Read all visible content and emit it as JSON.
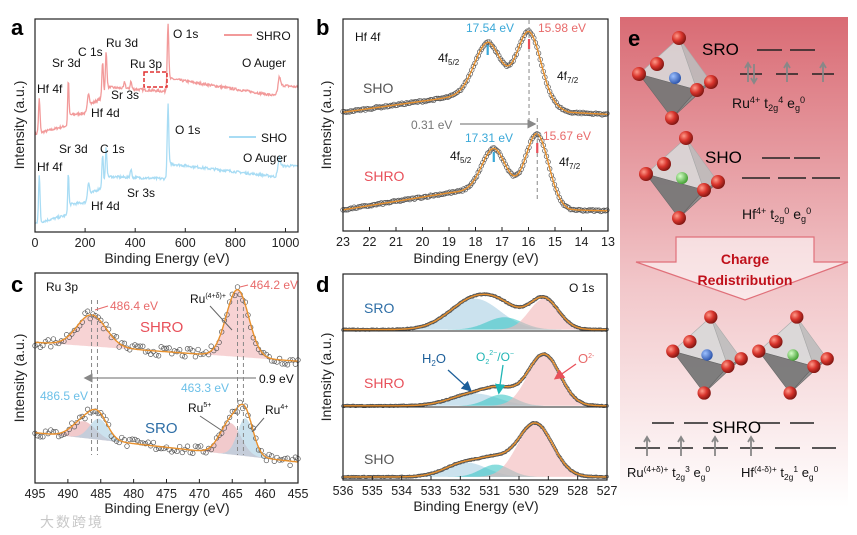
{
  "watermark": "大数跨境",
  "chart_data": [
    {
      "panel": "a",
      "type": "line",
      "xlabel": "Binding Energy (eV)",
      "ylabel": "Intensity (a.u.)",
      "xlim": [
        0,
        1050
      ],
      "ylim": [
        0,
        10
      ],
      "xticks": [
        0,
        200,
        400,
        600,
        800,
        1000
      ],
      "legend_position": "top-right",
      "series": [
        {
          "name": "SHRO",
          "color": "#f29a9a",
          "background": [
            [
              0,
              4.6
            ],
            [
              130,
              5.0
            ],
            [
              140,
              5.5
            ],
            [
              210,
              5.6
            ],
            [
              220,
              6.0
            ],
            [
              270,
              6.3
            ],
            [
              290,
              6.8
            ],
            [
              520,
              6.6
            ],
            [
              540,
              7.2
            ],
            [
              960,
              6.4
            ],
            [
              980,
              6.9
            ],
            [
              1050,
              6.8
            ]
          ],
          "peaks": [
            [
              17,
              1.6,
              3
            ],
            [
              133,
              2.0,
              2.5
            ],
            [
              213,
              0.8,
              4
            ],
            [
              270,
              1.7,
              3
            ],
            [
              284,
              1.8,
              3
            ],
            [
              358,
              0.3,
              3
            ],
            [
              383,
              0.35,
              3
            ],
            [
              531,
              2.9,
              3
            ],
            [
              975,
              0.5,
              4
            ]
          ]
        },
        {
          "name": "SHO",
          "color": "#a8dcf4",
          "background": [
            [
              0,
              0.4
            ],
            [
              130,
              0.8
            ],
            [
              140,
              1.3
            ],
            [
              210,
              1.4
            ],
            [
              220,
              1.8
            ],
            [
              270,
              2.1
            ],
            [
              290,
              2.6
            ],
            [
              520,
              2.5
            ],
            [
              540,
              3.2
            ],
            [
              960,
              2.6
            ],
            [
              980,
              3.1
            ],
            [
              1050,
              3.1
            ]
          ],
          "peaks": [
            [
              17,
              2.2,
              3
            ],
            [
              133,
              1.8,
              2.5
            ],
            [
              213,
              0.8,
              4
            ],
            [
              270,
              1.5,
              3
            ],
            [
              284,
              1.5,
              3
            ],
            [
              383,
              0.4,
              3
            ],
            [
              531,
              3.1,
              3
            ],
            [
              975,
              0.5,
              4
            ]
          ]
        }
      ],
      "annotations": {
        "shro": [
          "Hf 4f",
          "Sr 3d",
          "C 1s",
          "Ru 3d",
          "Ru 3p",
          "Sr 3s",
          "Hf 4d",
          "O 1s",
          "O Auger"
        ],
        "sho": [
          "Hf 4f",
          "Sr 3d",
          "C 1s",
          "Sr 3s",
          "Hf 4d",
          "O 1s",
          "O Auger"
        ]
      }
    },
    {
      "panel": "b",
      "type": "line",
      "title": "Hf 4f",
      "xlabel": "Binding Energy (eV)",
      "ylabel": "Intensity (a.u.)",
      "xlim": [
        23,
        13
      ],
      "ylim": [
        0,
        10
      ],
      "xticks": [
        23,
        22,
        21,
        20,
        19,
        18,
        17,
        16,
        15,
        14,
        13
      ],
      "series": [
        {
          "name": "SHO",
          "color": "#555555",
          "background": [
            [
              23,
              5.6
            ],
            [
              19,
              6.3
            ],
            [
              17.5,
              6.6
            ],
            [
              16,
              6.2
            ],
            [
              14.5,
              5.6
            ],
            [
              13,
              5.5
            ]
          ],
          "peaks": [
            [
              15.98,
              3.2,
              0.45
            ],
            [
              17.54,
              2.3,
              0.5
            ]
          ]
        },
        {
          "name": "SHRO",
          "color": "#e8505a",
          "background": [
            [
              23,
              1.0
            ],
            [
              19,
              1.8
            ],
            [
              17.3,
              2.0
            ],
            [
              15.7,
              1.6
            ],
            [
              14.5,
              1.0
            ],
            [
              13,
              0.95
            ]
          ],
          "peaks": [
            [
              15.67,
              3.0,
              0.42
            ],
            [
              17.31,
              1.9,
              0.45
            ]
          ]
        }
      ],
      "fit_color": "#e8902c",
      "annotations": {
        "sho_5_2": "17.54 eV",
        "sho_7_2": "15.98 eV",
        "shro_5_2": "17.31 eV",
        "shro_7_2": "15.67 eV",
        "shift": "0.31 eV",
        "f52": "4f",
        "f52_sub": "5/2",
        "f72": "4f",
        "f72_sub": "7/2"
      }
    },
    {
      "panel": "c",
      "type": "line",
      "title": "Ru 3p",
      "xlabel": "Binding Energy (eV)",
      "ylabel": "Intensity (a.u.)",
      "xlim": [
        495,
        455
      ],
      "ylim": [
        0,
        10
      ],
      "xticks": [
        495,
        490,
        485,
        480,
        475,
        470,
        465,
        460,
        455
      ],
      "series": [
        {
          "name": "SHRO",
          "color": "#e8505a",
          "background": [
            [
              495,
              6.7
            ],
            [
              455,
              5.8
            ]
          ],
          "components": [
            {
              "label": "Ru(4+δ)+",
              "center": 486.4,
              "amplitude": 1.5,
              "width": 2.2,
              "fill": "#f2b5b8"
            },
            {
              "label": "Ru(4+δ)+",
              "center": 464.2,
              "amplitude": 3.2,
              "width": 1.7,
              "fill": "#f2b5b8"
            }
          ]
        },
        {
          "name": "SRO",
          "color": "#2e6ea6",
          "background": [
            [
              495,
              2.4
            ],
            [
              455,
              1.0
            ]
          ],
          "components": [
            {
              "label": "Ru5+",
              "center": 487.6,
              "amplitude": 0.8,
              "width": 1.8,
              "fill": "#e8a6aa"
            },
            {
              "label": "Ru4+",
              "center": 485.3,
              "amplitude": 1.0,
              "width": 1.4,
              "fill": "#a9cfe3"
            },
            {
              "label": "Ru5+",
              "center": 465.3,
              "amplitude": 1.5,
              "width": 1.6,
              "fill": "#e8a6aa"
            },
            {
              "label": "Ru4+",
              "center": 463.0,
              "amplitude": 1.8,
              "width": 1.2,
              "fill": "#a9cfe3"
            }
          ]
        }
      ],
      "fit_color": "#e8902c",
      "annotations": {
        "shro_low": "486.4 eV",
        "shro_high": "464.2 eV",
        "shro_species": "Ru",
        "shro_species_sup": "(4+δ)+",
        "shift": "0.9 eV",
        "sro_low": "486.5 eV",
        "sro_high": "463.3 eV",
        "ru5": "Ru",
        "ru5_sup": "5+",
        "ru4": "Ru",
        "ru4_sup": "4+"
      }
    },
    {
      "panel": "d",
      "type": "area",
      "title": "O 1s",
      "xlabel": "Binding Energy (eV)",
      "ylabel": "Intensity (a.u.)",
      "xlim": [
        536,
        527
      ],
      "ylim": [
        0,
        10
      ],
      "xticks": [
        536,
        535,
        534,
        533,
        532,
        531,
        530,
        529,
        528,
        527
      ],
      "series": [
        {
          "name": "SRO",
          "color": "#2e6ea6",
          "background": 7.3,
          "components": [
            {
              "label": "H2O",
              "center": 531.5,
              "amplitude": 1.5,
              "width": 0.85,
              "fill": "#a9cfe3"
            },
            {
              "label": "O2 2-/O-",
              "center": 530.5,
              "amplitude": 0.6,
              "width": 0.6,
              "fill": "#3cc6c6"
            },
            {
              "label": "O2-",
              "center": 529.15,
              "amplitude": 1.5,
              "width": 0.5,
              "fill": "#f2b5b8"
            }
          ]
        },
        {
          "name": "SHRO",
          "color": "#e8505a",
          "background": 3.6,
          "components": [
            {
              "label": "H2O",
              "center": 531.5,
              "amplitude": 0.6,
              "width": 0.8,
              "fill": "#a9cfe3"
            },
            {
              "label": "O2 2-/O-",
              "center": 530.6,
              "amplitude": 0.55,
              "width": 0.5,
              "fill": "#3cc6c6"
            },
            {
              "label": "O2-",
              "center": 529.15,
              "amplitude": 2.5,
              "width": 0.55,
              "fill": "#f2b5b8"
            }
          ]
        },
        {
          "name": "SHO",
          "color": "#555555",
          "background": 0.15,
          "components": [
            {
              "label": "H2O",
              "center": 531.8,
              "amplitude": 0.7,
              "width": 0.7,
              "fill": "#a9cfe3"
            },
            {
              "label": "O2 2-/O-",
              "center": 530.8,
              "amplitude": 0.6,
              "width": 0.5,
              "fill": "#3cc6c6"
            },
            {
              "label": "O2-",
              "center": 529.45,
              "amplitude": 2.6,
              "width": 0.6,
              "fill": "#f2b5b8"
            }
          ]
        }
      ],
      "fit_color": "#e8902c",
      "annotations": {
        "h2o": "H",
        "h2o_sub": "2",
        "h2o_end": "O",
        "peroxo": "O",
        "peroxo_sub": "2",
        "peroxo_sup": "2−",
        "peroxo_end": "/O",
        "peroxo_end_sup": "−",
        "lattice": "O",
        "lattice_sup": "2-"
      }
    }
  ],
  "panel_e": {
    "label": "e",
    "orbitals": {
      "t": " t",
      "t_sub": "2g",
      "e": " e",
      "e_sub": "g"
    },
    "sro": {
      "name": "SRO",
      "ion": "Ru",
      "charge": "4+",
      "t_occ": "4",
      "e_occ": "0"
    },
    "sho": {
      "name": "SHO",
      "ion": "Hf",
      "charge": "4+",
      "t_occ": "0",
      "e_occ": "0"
    },
    "arrow": {
      "line1": "Charge",
      "line2": "Redistribution"
    },
    "shro": {
      "name": "SHRO",
      "ru": {
        "ion": "Ru",
        "charge": "(4+δ)+",
        "t_occ": "3",
        "e_occ": "0"
      },
      "hf": {
        "ion": "Hf",
        "charge": "(4-δ)+",
        "t_occ": "1",
        "e_occ": "0"
      }
    },
    "colors": {
      "ru_atom": "#3a6fd0",
      "hf_atom": "#5fcf4a",
      "o_atom": "#d8342c",
      "arrow_text": "#c0101a"
    }
  },
  "panel_labels": [
    "a",
    "b",
    "c",
    "d"
  ]
}
